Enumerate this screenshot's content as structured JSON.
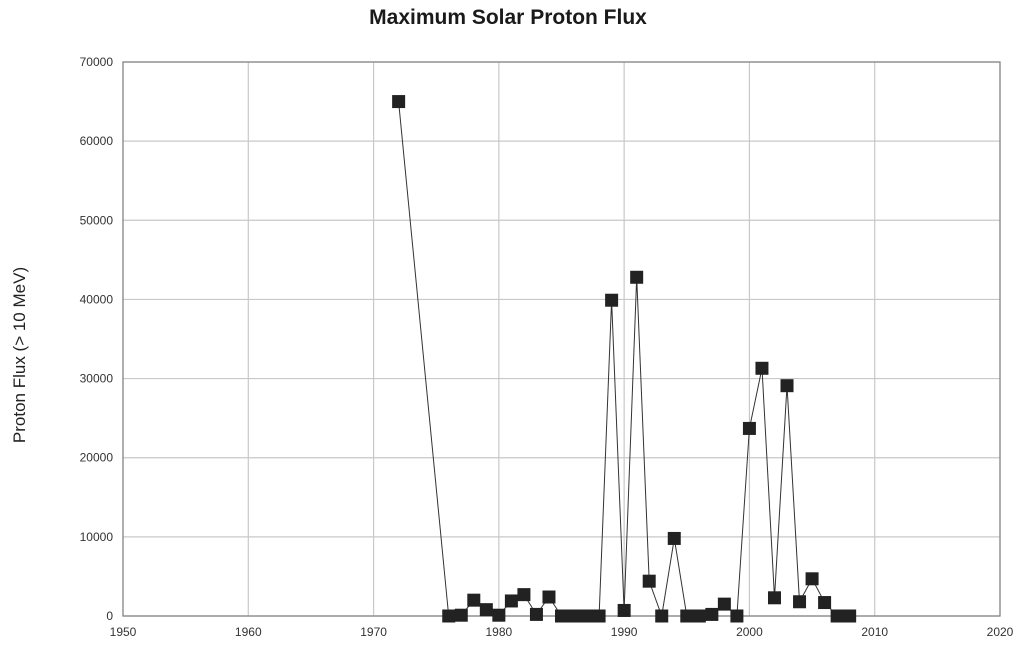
{
  "chart_data": {
    "type": "line",
    "title": "Maximum Solar Proton Flux",
    "xlabel": "",
    "ylabel": "Proton Flux (> 10 MeV)",
    "xlim": [
      1950,
      2020
    ],
    "ylim": [
      0,
      70000
    ],
    "x_ticks": [
      "1950",
      "1960",
      "1970",
      "1980",
      "1990",
      "2000",
      "2010",
      "2020"
    ],
    "y_ticks": [
      "0",
      "10000",
      "20000",
      "30000",
      "40000",
      "50000",
      "60000",
      "70000"
    ],
    "grid": true,
    "marker": "square",
    "series": [
      {
        "x": [
          1972,
          1976,
          1977,
          1978,
          1979,
          1980,
          1981,
          1982,
          1983,
          1984,
          1985,
          1986,
          1987,
          1988,
          1989,
          1990,
          1991,
          1992,
          1993,
          1994,
          1995,
          1996,
          1997,
          1998,
          1999,
          2000,
          2001,
          2002,
          2003,
          2004,
          2005,
          2006,
          2007,
          2008
        ],
        "y": [
          65000,
          0,
          100,
          2000,
          800,
          100,
          1900,
          2700,
          200,
          2400,
          0,
          0,
          0,
          0,
          39900,
          700,
          42800,
          4400,
          0,
          9800,
          0,
          0,
          200,
          1500,
          0,
          23700,
          31300,
          2300,
          29100,
          1800,
          4700,
          1700,
          0,
          0
        ]
      }
    ],
    "colors": {
      "line": "#333333",
      "marker": "#222222",
      "grid": "#c8c8c8",
      "frame": "#888888"
    }
  }
}
